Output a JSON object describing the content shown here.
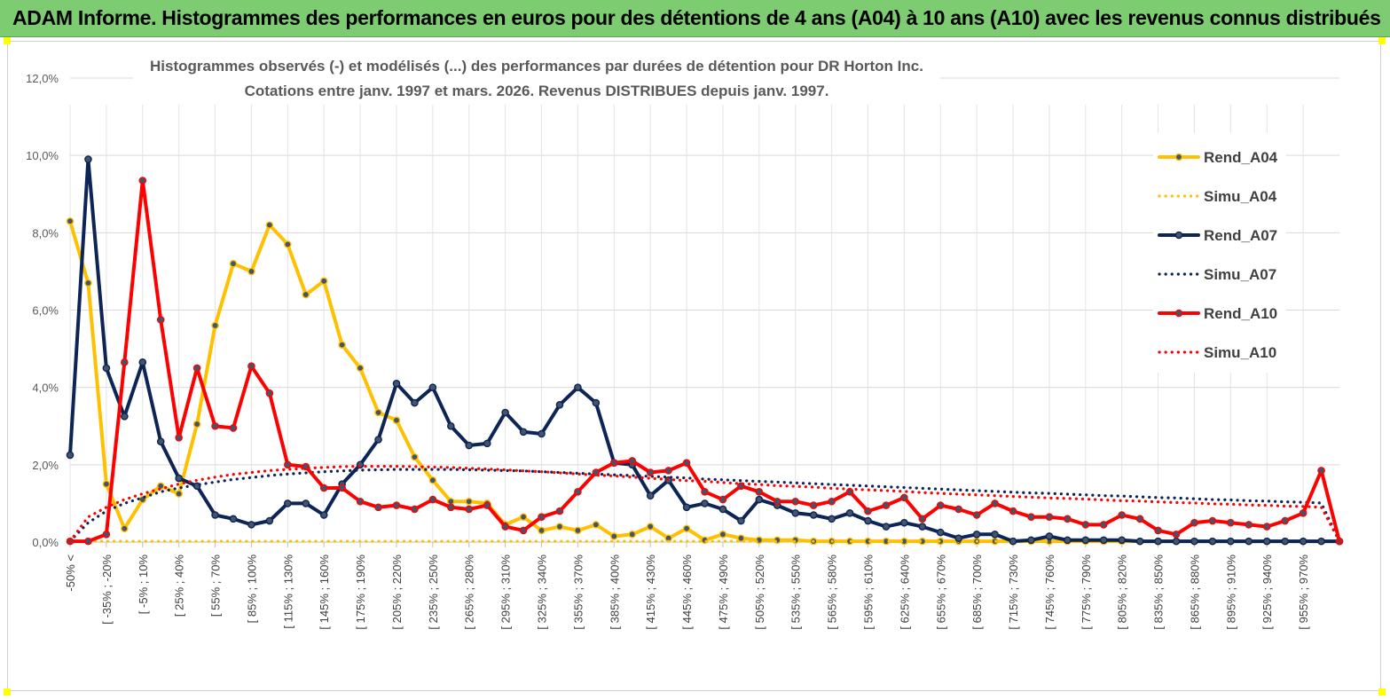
{
  "header": {
    "title": "ADAM Informe. Histogrammes des performances en euros pour des détentions de 4 ans (A04) à 10 ans (A10) avec les revenus connus distribués"
  },
  "chart_data": {
    "type": "line",
    "title": "Histogrammes observés (-) et modélisés (...) des performances par durées de détention pour DR Horton Inc.",
    "subtitle": "Cotations entre janv. 1997 et mars. 2026.  Revenus DISTRIBUES depuis janv. 1997.",
    "ylim": [
      0,
      12
    ],
    "yticks": [
      "0,0%",
      "2,0%",
      "4,0%",
      "6,0%",
      "8,0%",
      "10,0%",
      "12,0%"
    ],
    "xtick_labels": [
      "-50% <",
      "[ -35% ; -20%",
      "[ -5% ; 10%",
      "[ 25% ; 40%",
      "[ 55% ; 70%",
      "[ 85% ; 100%",
      "[ 115% ; 130%",
      "[ 145% ; 160%",
      "[ 175% ; 190%",
      "[ 205% ; 220%",
      "[ 235% ; 250%",
      "[ 265% ; 280%",
      "[ 295% ; 310%",
      "[ 325% ; 340%",
      "[ 355% ; 370%",
      "[ 385% ; 400%",
      "[ 415% ; 430%",
      "[ 445% ; 460%",
      "[ 475% ; 490%",
      "[ 505% ; 520%",
      "[ 535% ; 550%",
      "[ 565% ; 580%",
      "[ 595% ; 610%",
      "[ 625% ; 640%",
      "[ 655% ; 670%",
      "[ 685% ; 700%",
      "[ 715% ; 730%",
      "[ 745% ; 760%",
      "[ 775% ; 790%",
      "[ 805% ; 820%",
      "[ 835% ; 850%",
      "[ 865% ; 880%",
      "[ 895% ; 910%",
      "[ 925% ; 940%",
      "[ 955% ; 970%"
    ],
    "xtick_every": 2,
    "series": [
      {
        "name": "Rend_A04",
        "style": "solid",
        "color": "#ffc000",
        "values": [
          8.3,
          6.7,
          1.5,
          0.35,
          1.1,
          1.45,
          1.25,
          3.05,
          5.6,
          7.2,
          7.0,
          8.2,
          7.7,
          6.4,
          6.75,
          5.1,
          4.5,
          3.35,
          3.15,
          2.2,
          1.6,
          1.05,
          1.05,
          1.0,
          0.45,
          0.65,
          0.3,
          0.4,
          0.3,
          0.45,
          0.15,
          0.2,
          0.4,
          0.1,
          0.35,
          0.05,
          0.2,
          0.1,
          0.05,
          0.05,
          0.05,
          0.02,
          0.02,
          0.02,
          0.02,
          0.02,
          0.02,
          0.02,
          0.02,
          0.02,
          0.02,
          0.02,
          0.02,
          0.02,
          0.02,
          0.02,
          0.02,
          0.02,
          0.02,
          0.02,
          0.02,
          0.02,
          0.02,
          0.02,
          0.02,
          0.02,
          0.02,
          0.02,
          0.02,
          0.02,
          0.02
        ]
      },
      {
        "name": "Simu_A04",
        "style": "dotted",
        "color": "#ffc000",
        "values": [
          0.02,
          0.02,
          0.02,
          0.02,
          0.02,
          0.02,
          0.02,
          0.02,
          0.02,
          0.02,
          0.02,
          0.02,
          0.02,
          0.02,
          0.02,
          0.02,
          0.02,
          0.02,
          0.02,
          0.02,
          0.02,
          0.02,
          0.02,
          0.02,
          0.02,
          0.02,
          0.02,
          0.02,
          0.02,
          0.02,
          0.02,
          0.02,
          0.02,
          0.02,
          0.02,
          0.02,
          0.02,
          0.02,
          0.02,
          0.02,
          0.02,
          0.02,
          0.02,
          0.02,
          0.02,
          0.02,
          0.02,
          0.02,
          0.02,
          0.02,
          0.02,
          0.02,
          0.02,
          0.02,
          0.02,
          0.02,
          0.02,
          0.02,
          0.02,
          0.02,
          0.02,
          0.02,
          0.02,
          0.02,
          0.02,
          0.02,
          0.02,
          0.02,
          0.02,
          0.02,
          0.02
        ]
      },
      {
        "name": "Rend_A07",
        "style": "solid",
        "color": "#0d2556",
        "values": [
          2.25,
          9.9,
          4.5,
          3.25,
          4.65,
          2.6,
          1.65,
          1.45,
          0.7,
          0.6,
          0.45,
          0.55,
          1.0,
          1.0,
          0.7,
          1.5,
          2.0,
          2.65,
          4.1,
          3.6,
          4.0,
          3.0,
          2.5,
          2.55,
          3.35,
          2.85,
          2.8,
          3.55,
          4.0,
          3.6,
          2.05,
          2.0,
          1.2,
          1.6,
          0.9,
          1.0,
          0.85,
          0.55,
          1.1,
          0.95,
          0.75,
          0.7,
          0.6,
          0.75,
          0.55,
          0.4,
          0.5,
          0.4,
          0.25,
          0.1,
          0.2,
          0.2,
          0.02,
          0.05,
          0.15,
          0.05,
          0.05,
          0.05,
          0.05,
          0.02,
          0.02,
          0.02,
          0.02,
          0.02,
          0.02,
          0.02,
          0.02,
          0.02,
          0.02,
          0.02,
          0.02
        ]
      },
      {
        "name": "Simu_A07",
        "style": "dotted",
        "color": "#0d2556",
        "values": [
          0.02,
          0.5,
          0.8,
          1.0,
          1.15,
          1.3,
          1.4,
          1.48,
          1.55,
          1.62,
          1.67,
          1.72,
          1.76,
          1.79,
          1.82,
          1.84,
          1.86,
          1.87,
          1.88,
          1.88,
          1.88,
          1.88,
          1.87,
          1.86,
          1.85,
          1.84,
          1.82,
          1.8,
          1.78,
          1.76,
          1.74,
          1.72,
          1.7,
          1.68,
          1.66,
          1.63,
          1.61,
          1.59,
          1.57,
          1.55,
          1.53,
          1.51,
          1.49,
          1.47,
          1.45,
          1.43,
          1.41,
          1.39,
          1.37,
          1.35,
          1.33,
          1.31,
          1.29,
          1.27,
          1.26,
          1.24,
          1.22,
          1.2,
          1.19,
          1.17,
          1.15,
          1.14,
          1.12,
          1.1,
          1.09,
          1.07,
          1.06,
          1.04,
          1.03,
          1.01,
          0.02
        ]
      },
      {
        "name": "Rend_A10",
        "style": "solid",
        "color": "#ff0000",
        "values": [
          0.02,
          0.02,
          0.2,
          4.65,
          9.35,
          5.75,
          2.7,
          4.5,
          3.0,
          2.95,
          4.55,
          3.85,
          2.0,
          1.95,
          1.4,
          1.4,
          1.05,
          0.9,
          0.95,
          0.85,
          1.1,
          0.9,
          0.85,
          0.95,
          0.4,
          0.3,
          0.65,
          0.8,
          1.3,
          1.8,
          2.05,
          2.1,
          1.8,
          1.85,
          2.05,
          1.3,
          1.1,
          1.45,
          1.3,
          1.05,
          1.05,
          0.95,
          1.05,
          1.3,
          0.8,
          0.95,
          1.15,
          0.6,
          0.95,
          0.85,
          0.7,
          1.0,
          0.8,
          0.65,
          0.65,
          0.6,
          0.45,
          0.45,
          0.7,
          0.6,
          0.3,
          0.2,
          0.5,
          0.55,
          0.5,
          0.45,
          0.4,
          0.55,
          0.75,
          1.85,
          0.02
        ]
      },
      {
        "name": "Simu_A10",
        "style": "dotted",
        "color": "#ff0000",
        "values": [
          0.02,
          0.65,
          0.9,
          1.1,
          1.25,
          1.38,
          1.5,
          1.6,
          1.68,
          1.75,
          1.8,
          1.85,
          1.88,
          1.91,
          1.93,
          1.95,
          1.96,
          1.96,
          1.96,
          1.95,
          1.94,
          1.93,
          1.91,
          1.89,
          1.87,
          1.84,
          1.82,
          1.79,
          1.76,
          1.73,
          1.71,
          1.68,
          1.65,
          1.62,
          1.59,
          1.57,
          1.54,
          1.51,
          1.49,
          1.46,
          1.44,
          1.42,
          1.39,
          1.37,
          1.35,
          1.33,
          1.31,
          1.28,
          1.26,
          1.24,
          1.22,
          1.2,
          1.18,
          1.16,
          1.14,
          1.13,
          1.11,
          1.09,
          1.07,
          1.06,
          1.04,
          1.02,
          1.01,
          0.99,
          0.98,
          0.96,
          0.95,
          0.93,
          0.92,
          0.9,
          0.02
        ]
      }
    ],
    "legend": "right"
  }
}
